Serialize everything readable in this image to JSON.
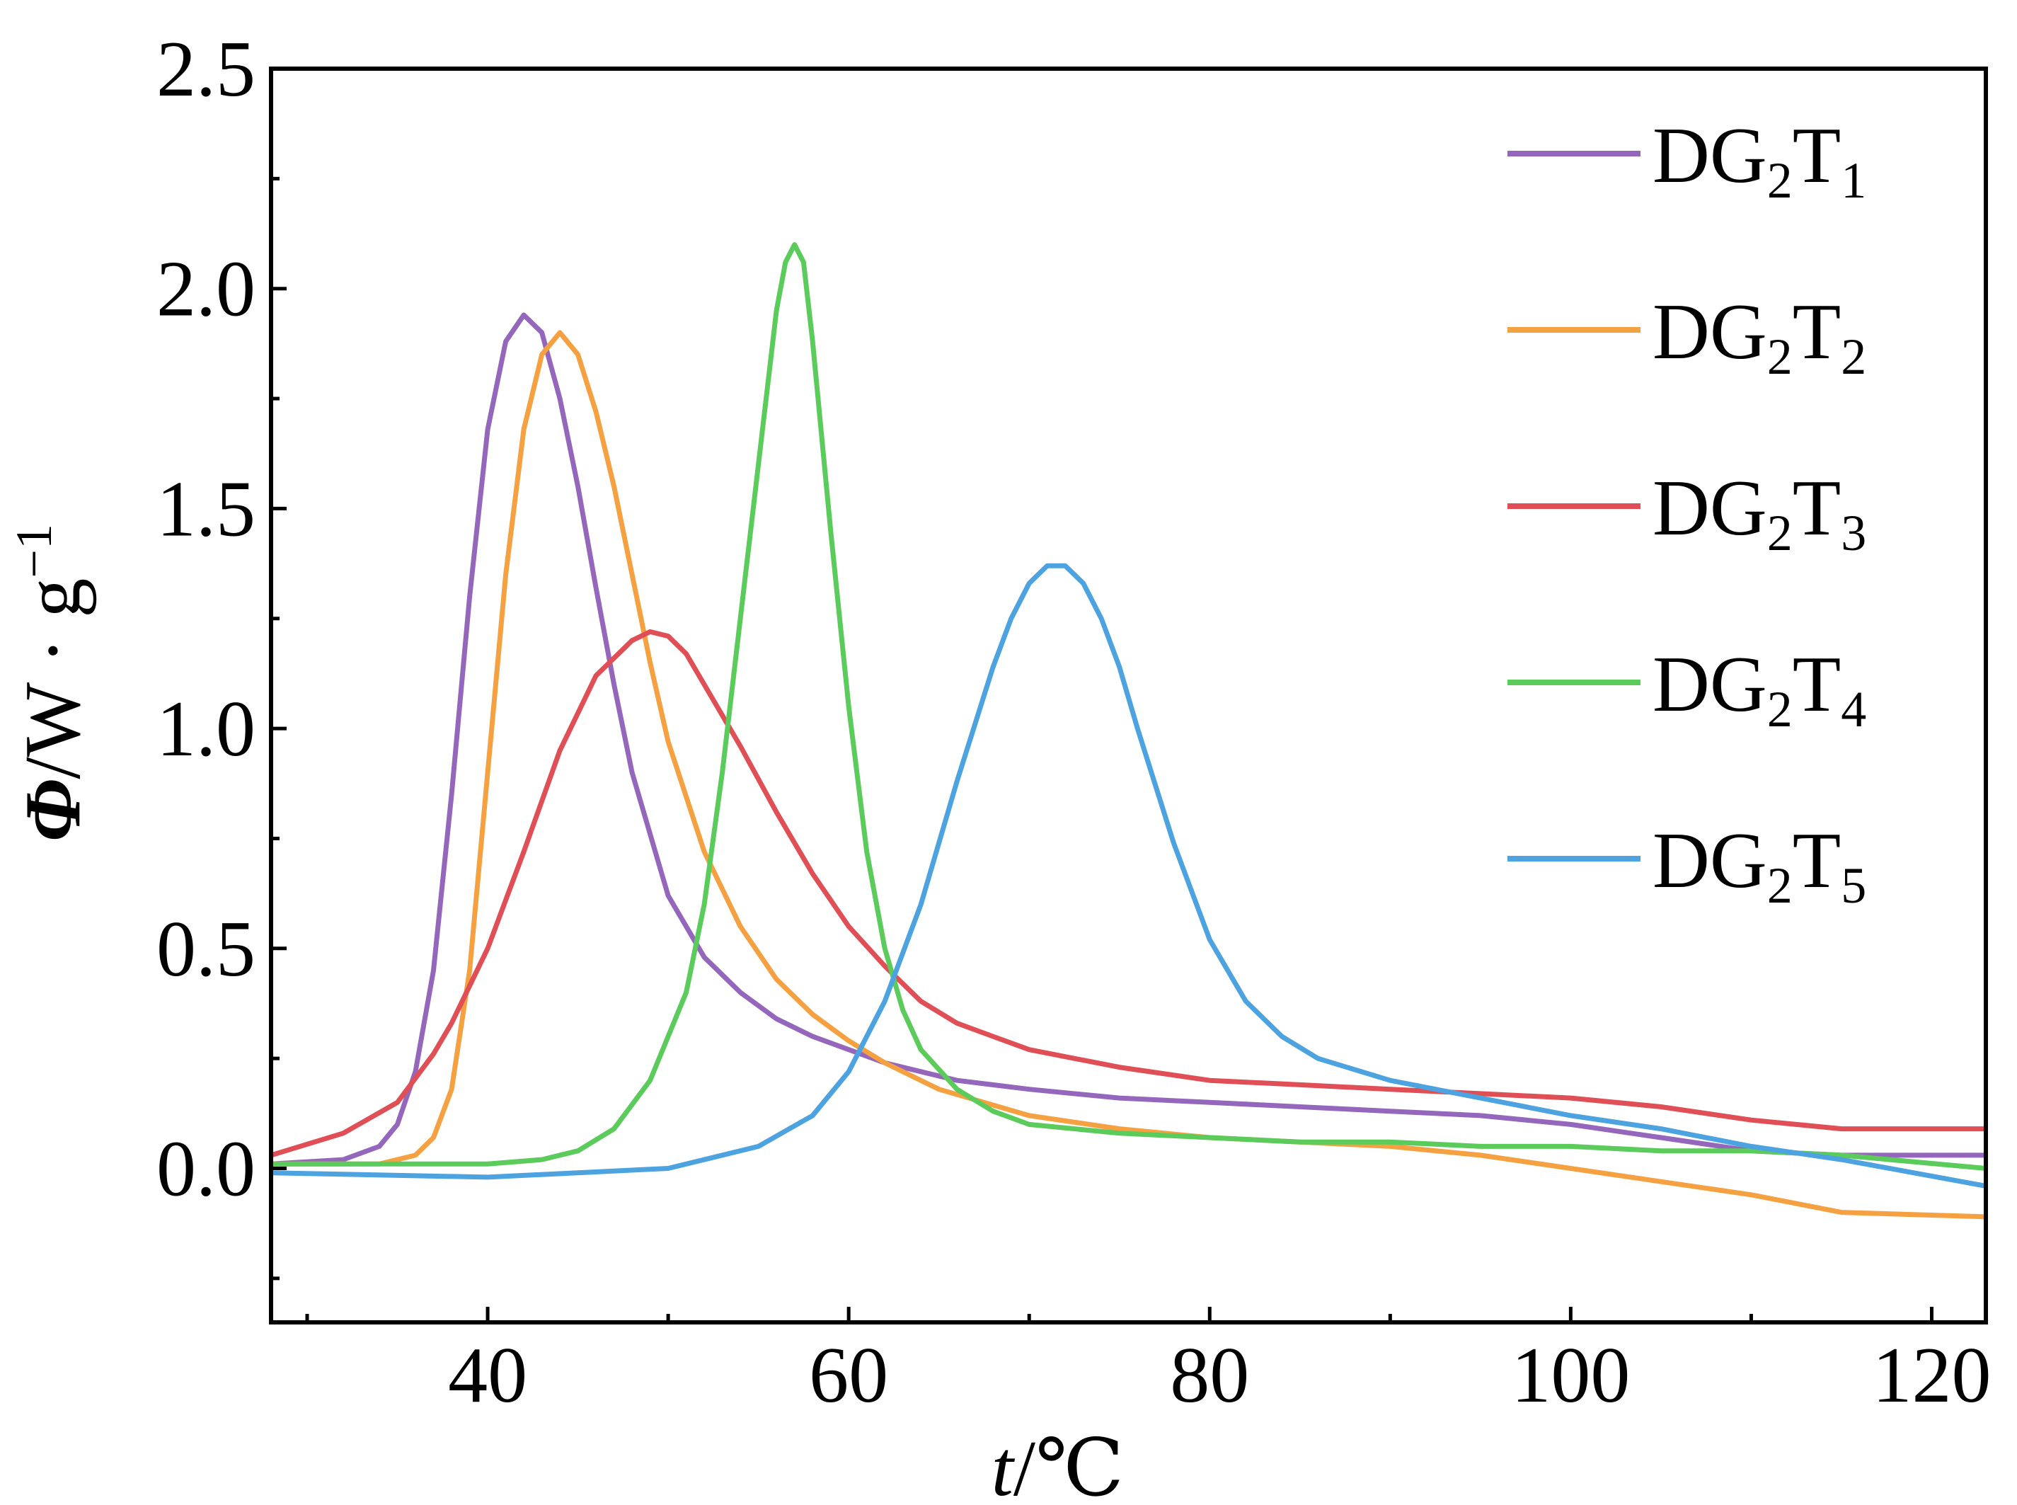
{
  "chart_data": {
    "type": "line",
    "title": "",
    "xlabel": {
      "main": "t",
      "unit": "/℃"
    },
    "ylabel": {
      "main": "Φ",
      "unit": "/W · g",
      "sup": "−1"
    },
    "xlim": [
      28,
      123
    ],
    "ylim": [
      -0.35,
      2.5
    ],
    "xticks": [
      40,
      60,
      80,
      100,
      120
    ],
    "xtick_labels": [
      "40",
      "60",
      "80",
      "100",
      "120"
    ],
    "yticks": [
      0.0,
      0.5,
      1.0,
      1.5,
      2.0,
      2.5
    ],
    "ytick_labels": [
      "0.0",
      "0.5",
      "1.0",
      "1.5",
      "2.0",
      "2.5"
    ],
    "grid": false,
    "legend_position": "top-right",
    "series": [
      {
        "name": "DG2T1",
        "label_main": "DG",
        "label_sub1": "2",
        "label_mid": "T",
        "label_sub2": "1",
        "color": "#9467bd",
        "x": [
          28,
          32,
          34,
          35,
          36,
          37,
          38,
          39,
          40,
          41,
          42,
          43,
          44,
          45,
          46,
          47,
          48,
          50,
          52,
          54,
          56,
          58,
          60,
          62,
          64,
          66,
          70,
          75,
          80,
          85,
          90,
          95,
          100,
          105,
          110,
          115,
          123
        ],
        "y": [
          0.01,
          0.02,
          0.05,
          0.1,
          0.22,
          0.45,
          0.85,
          1.3,
          1.68,
          1.88,
          1.94,
          1.9,
          1.75,
          1.55,
          1.32,
          1.1,
          0.9,
          0.62,
          0.48,
          0.4,
          0.34,
          0.3,
          0.27,
          0.24,
          0.22,
          0.2,
          0.18,
          0.16,
          0.15,
          0.14,
          0.13,
          0.12,
          0.1,
          0.07,
          0.04,
          0.03,
          0.03
        ]
      },
      {
        "name": "DG2T2",
        "label_main": "DG",
        "label_sub1": "2",
        "label_mid": "T",
        "label_sub2": "2",
        "color": "#f5a142",
        "x": [
          28,
          34,
          36,
          37,
          38,
          39,
          40,
          41,
          42,
          43,
          44,
          45,
          46,
          47,
          48,
          49,
          50,
          52,
          54,
          56,
          58,
          60,
          62,
          65,
          70,
          75,
          80,
          85,
          90,
          95,
          100,
          105,
          110,
          115,
          123
        ],
        "y": [
          0.01,
          0.01,
          0.03,
          0.07,
          0.18,
          0.45,
          0.9,
          1.35,
          1.68,
          1.85,
          1.9,
          1.85,
          1.72,
          1.55,
          1.35,
          1.15,
          0.97,
          0.72,
          0.55,
          0.43,
          0.35,
          0.29,
          0.24,
          0.18,
          0.12,
          0.09,
          0.07,
          0.06,
          0.05,
          0.03,
          0.0,
          -0.03,
          -0.06,
          -0.1,
          -0.11
        ]
      },
      {
        "name": "DG2T3",
        "label_main": "DG",
        "label_sub1": "2",
        "label_mid": "T",
        "label_sub2": "3",
        "color": "#e04f55",
        "x": [
          28,
          32,
          35,
          37,
          38,
          40,
          42,
          44,
          46,
          48,
          49,
          50,
          51,
          52,
          54,
          56,
          58,
          60,
          62,
          64,
          66,
          68,
          70,
          75,
          80,
          85,
          90,
          95,
          100,
          105,
          110,
          115,
          123
        ],
        "y": [
          0.03,
          0.08,
          0.15,
          0.26,
          0.33,
          0.5,
          0.72,
          0.95,
          1.12,
          1.2,
          1.22,
          1.21,
          1.17,
          1.1,
          0.96,
          0.81,
          0.67,
          0.55,
          0.46,
          0.38,
          0.33,
          0.3,
          0.27,
          0.23,
          0.2,
          0.19,
          0.18,
          0.17,
          0.16,
          0.14,
          0.11,
          0.09,
          0.09
        ]
      },
      {
        "name": "DG2T4",
        "label_main": "DG",
        "label_sub1": "2",
        "label_mid": "T",
        "label_sub2": "4",
        "color": "#5bcb5b",
        "x": [
          28,
          40,
          43,
          45,
          47,
          49,
          51,
          52,
          53,
          54,
          55,
          56,
          56.5,
          57,
          57.5,
          58,
          59,
          60,
          61,
          62,
          63,
          64,
          66,
          68,
          70,
          75,
          80,
          85,
          90,
          95,
          100,
          105,
          110,
          115,
          123
        ],
        "y": [
          0.01,
          0.01,
          0.02,
          0.04,
          0.09,
          0.2,
          0.4,
          0.6,
          0.9,
          1.25,
          1.6,
          1.95,
          2.06,
          2.1,
          2.06,
          1.88,
          1.45,
          1.05,
          0.72,
          0.5,
          0.36,
          0.27,
          0.18,
          0.13,
          0.1,
          0.08,
          0.07,
          0.06,
          0.06,
          0.05,
          0.05,
          0.04,
          0.04,
          0.03,
          0.0
        ]
      },
      {
        "name": "DG2T5",
        "label_main": "DG",
        "label_sub1": "2",
        "label_mid": "T",
        "label_sub2": "5",
        "color": "#4da3e0",
        "x": [
          28,
          40,
          50,
          55,
          58,
          60,
          62,
          64,
          66,
          68,
          69,
          70,
          71,
          72,
          73,
          74,
          75,
          76,
          78,
          80,
          82,
          84,
          86,
          90,
          95,
          100,
          105,
          110,
          115,
          123
        ],
        "y": [
          -0.01,
          -0.02,
          0.0,
          0.05,
          0.12,
          0.22,
          0.38,
          0.6,
          0.88,
          1.14,
          1.25,
          1.33,
          1.37,
          1.37,
          1.33,
          1.25,
          1.14,
          1.0,
          0.74,
          0.52,
          0.38,
          0.3,
          0.25,
          0.2,
          0.16,
          0.12,
          0.09,
          0.05,
          0.02,
          -0.04
        ]
      }
    ]
  }
}
